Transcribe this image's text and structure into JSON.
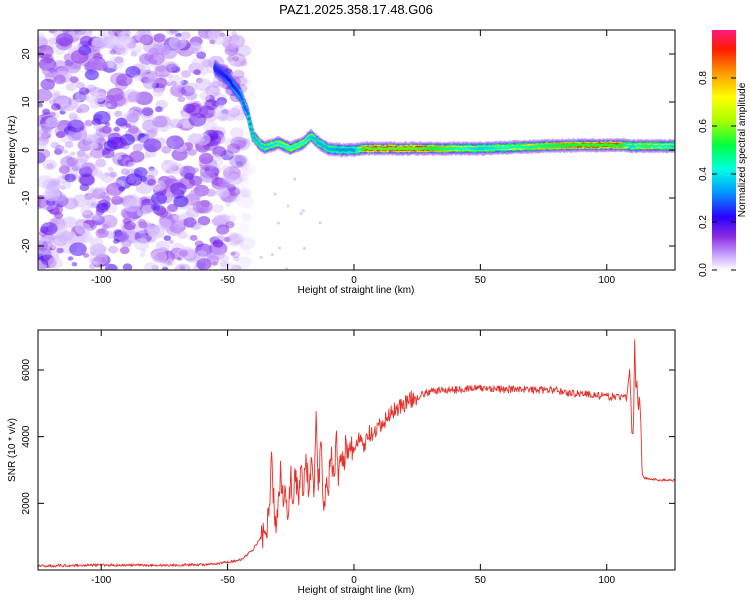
{
  "figure_title": "PAZ1.2025.358.17.48.G06",
  "chart_data": [
    {
      "type": "heatmap",
      "title": "PAZ1.2025.358.17.48.G06",
      "xlabel": "Height of straight line (km)",
      "ylabel": "Frequency (Hz)",
      "xlim": [
        -125,
        127
      ],
      "ylim": [
        -25,
        25
      ],
      "x_ticks": [
        -100,
        -50,
        0,
        50,
        100
      ],
      "y_ticks": [
        -20,
        -10,
        0,
        10,
        20
      ],
      "x_tick_labels": [
        "-100",
        "-50",
        "0",
        "50",
        "100"
      ],
      "y_tick_labels": [
        "-20",
        "-10",
        "0",
        "10",
        "20"
      ],
      "colorbar": {
        "label": "Normalized spectral amplitude",
        "range": [
          0,
          1
        ],
        "ticks": [
          0.0,
          0.2,
          0.4,
          0.6,
          0.8
        ],
        "tick_labels": [
          "0.0",
          "0.2",
          "0.4",
          "0.6",
          "0.8"
        ],
        "colormap": "rainbow"
      },
      "noise_region_x": [
        -125,
        -45
      ],
      "ridge": {
        "x": [
          -55,
          -50,
          -45,
          -42,
          -40,
          -37,
          -35,
          -30,
          -25,
          -20,
          -17,
          -14,
          -10,
          -5,
          0,
          5,
          25,
          50,
          75,
          90,
          105,
          110,
          115,
          127
        ],
        "frequency": [
          17,
          15,
          11.5,
          7.5,
          3,
          1,
          0.5,
          1.5,
          0.3,
          1.5,
          3,
          1.5,
          0.2,
          0,
          0,
          0.3,
          0.3,
          0.3,
          0.8,
          1,
          1,
          0.8,
          0.8,
          0.8
        ],
        "amplitude": [
          0.25,
          0.3,
          0.4,
          0.45,
          0.55,
          0.6,
          0.6,
          0.65,
          0.7,
          0.7,
          0.6,
          0.55,
          0.55,
          0.5,
          0.5,
          0.95,
          0.95,
          0.6,
          0.8,
          0.9,
          0.9,
          0.6,
          0.8,
          0.6
        ]
      }
    },
    {
      "type": "line",
      "xlabel": "Height of straight line (km)",
      "ylabel": "SNR (10 * v/v)",
      "xlim": [
        -125,
        127
      ],
      "ylim": [
        0,
        7200
      ],
      "x_ticks": [
        -100,
        -50,
        0,
        50,
        100
      ],
      "y_ticks": [
        2000,
        4000,
        6000
      ],
      "x_tick_labels": [
        "-100",
        "-50",
        "0",
        "50",
        "100"
      ],
      "y_tick_labels": [
        "2000",
        "4000",
        "6000"
      ],
      "line_color": "#e8302a",
      "series": [
        {
          "name": "SNR",
          "x": [
            -125,
            -100,
            -75,
            -55,
            -45,
            -40,
            -36,
            -35,
            -34,
            -33,
            -32.5,
            -32,
            -31,
            -30,
            -29,
            -28,
            -27,
            -26,
            -25,
            -24,
            -23,
            -22,
            -21,
            -20,
            -19,
            -18,
            -17,
            -16,
            -15,
            -14,
            -13,
            -12,
            -11,
            -10,
            -9,
            -8,
            -7,
            -6,
            -5,
            -4,
            -3,
            -2,
            -1,
            0,
            2,
            4,
            6,
            8,
            10,
            12,
            14,
            16,
            18,
            20,
            25,
            30,
            35,
            40,
            45,
            50,
            55,
            60,
            65,
            70,
            75,
            80,
            85,
            90,
            95,
            100,
            105,
            108,
            109,
            110,
            110.5,
            111,
            111.5,
            112,
            112.5,
            113,
            113.5,
            114,
            115,
            120,
            127
          ],
          "values": [
            120,
            150,
            140,
            170,
            300,
            600,
            1100,
            700,
            1800,
            2600,
            4100,
            2400,
            1100,
            2000,
            3000,
            2200,
            2500,
            1600,
            2900,
            2000,
            3100,
            1800,
            3200,
            2200,
            3600,
            2500,
            3300,
            2100,
            4500,
            2600,
            3800,
            1800,
            2800,
            2600,
            3500,
            2600,
            3900,
            2700,
            3600,
            3300,
            3900,
            3200,
            3700,
            3600,
            3900,
            3700,
            4100,
            4000,
            4300,
            4400,
            4700,
            4800,
            4900,
            5000,
            5200,
            5350,
            5400,
            5400,
            5450,
            5450,
            5450,
            5400,
            5450,
            5400,
            5400,
            5400,
            5300,
            5300,
            5250,
            5200,
            5200,
            5150,
            6000,
            4200,
            3900,
            7100,
            5400,
            5600,
            4800,
            5300,
            4400,
            2900,
            2750,
            2700,
            2700
          ]
        }
      ]
    }
  ]
}
